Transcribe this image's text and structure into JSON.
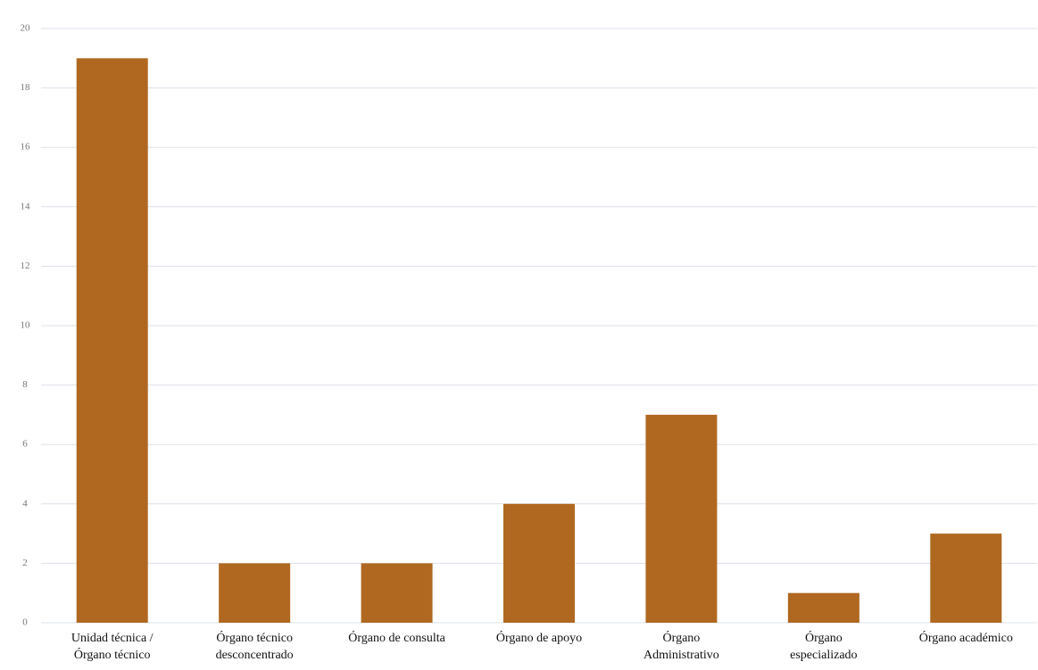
{
  "chart_data": {
    "type": "bar",
    "categories": [
      "Unidad técnica /\nÓrgano técnico",
      "Órgano técnico\ndesconcentrado",
      "Órgano de consulta",
      "Órgano de apoyo",
      "Órgano\nAdministrativo",
      "Órgano\nespecializado",
      "Órgano  académico"
    ],
    "values": [
      19,
      2,
      2,
      4,
      7,
      1,
      3
    ],
    "color": "#b06820",
    "ylim": [
      0,
      20
    ],
    "yticks": [
      0,
      2,
      4,
      6,
      8,
      10,
      12,
      14,
      16,
      18,
      20
    ],
    "grid": true
  }
}
